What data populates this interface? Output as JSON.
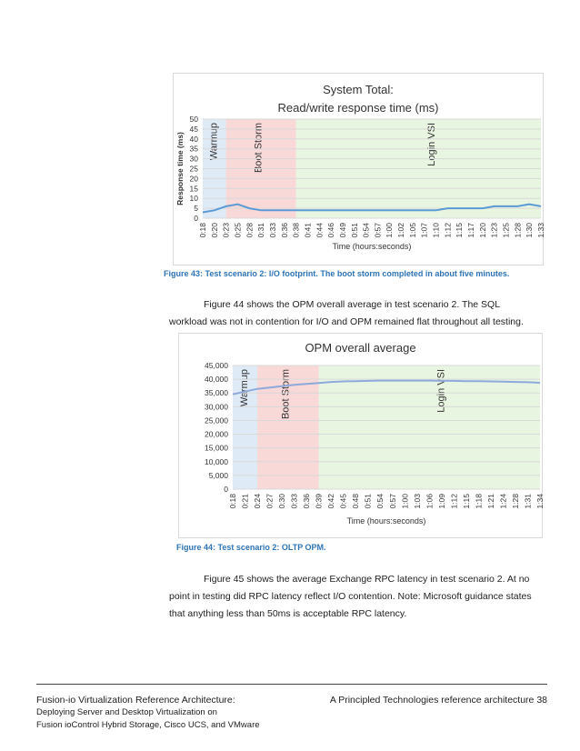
{
  "chart_data": [
    {
      "type": "line",
      "title": "System Total:",
      "subtitle": "Read/write response time (ms)",
      "x_label": "Time (hours:seconds)",
      "y_label": "Response time (ms)",
      "color": "#5b9bd5",
      "categories": [
        "0:18",
        "0:20",
        "0:23",
        "0:25",
        "0:28",
        "0:31",
        "0:33",
        "0:36",
        "0:38",
        "0:41",
        "0:44",
        "0:46",
        "0:49",
        "0:51",
        "0:54",
        "0:57",
        "1:00",
        "1:02",
        "1:05",
        "1:07",
        "1:10",
        "1:12",
        "1:15",
        "1:17",
        "1:20",
        "1:23",
        "1:25",
        "1:28",
        "1:30",
        "1:33"
      ],
      "values": [
        3,
        4,
        6,
        7,
        5,
        4,
        4,
        4,
        4,
        4,
        4,
        4,
        4,
        4,
        4,
        4,
        4,
        4,
        4,
        4,
        4,
        5,
        5,
        5,
        5,
        6,
        6,
        6,
        7,
        6
      ],
      "ylim": [
        0,
        50
      ],
      "yticks": [
        0,
        5,
        10,
        15,
        20,
        25,
        30,
        35,
        40,
        45,
        50
      ],
      "grid": true,
      "regions": [
        {
          "label": "Warmup",
          "start": "0:18",
          "end": "0:23",
          "color": "#c5d9f1"
        },
        {
          "label": "Boot Storm",
          "start": "0:23",
          "end": "0:38",
          "color": "#f4b8b8"
        },
        {
          "label": "Login VSI",
          "start": "0:38",
          "end": "1:33",
          "color": "#d6ecc8"
        }
      ]
    },
    {
      "type": "line",
      "title": "OPM overall average",
      "x_label": "Time (hours:seconds)",
      "color": "#8eaadb",
      "categories": [
        "0:18",
        "0:21",
        "0:24",
        "0:27",
        "0:30",
        "0:33",
        "0:36",
        "0:39",
        "0:42",
        "0:45",
        "0:48",
        "0:51",
        "0:54",
        "0:57",
        "1:00",
        "1:03",
        "1:06",
        "1:09",
        "1:12",
        "1:15",
        "1:18",
        "1:21",
        "1:24",
        "1:28",
        "1:31",
        "1:34"
      ],
      "values": [
        34500,
        35500,
        36500,
        37000,
        37500,
        38000,
        38300,
        38600,
        39000,
        39200,
        39300,
        39400,
        39500,
        39500,
        39500,
        39500,
        39500,
        39400,
        39400,
        39300,
        39300,
        39200,
        39100,
        39000,
        38900,
        38700
      ],
      "ylim": [
        0,
        45000
      ],
      "yticks": [
        0,
        {
          "value": 5000,
          "label": "5,000"
        },
        {
          "value": 10000,
          "label": "10,000"
        },
        {
          "value": 15000,
          "label": "15,000"
        },
        {
          "value": 20000,
          "label": "20,000"
        },
        {
          "value": 25000,
          "label": "25,000"
        },
        {
          "value": 30000,
          "label": "30,000"
        },
        {
          "value": 35000,
          "label": "35,000"
        },
        {
          "value": 40000,
          "label": "40,000"
        },
        {
          "value": 45000,
          "label": "45,000"
        }
      ],
      "grid": true,
      "regions": [
        {
          "label": "Warmup",
          "start": "0:18",
          "end": "0:24",
          "color": "#c5d9f1"
        },
        {
          "label": "Boot Storm",
          "start": "0:24",
          "end": "0:39",
          "color": "#f4b8b8"
        },
        {
          "label": "Login VSI",
          "start": "0:39",
          "end": "1:34",
          "color": "#d6ecc8"
        }
      ]
    }
  ],
  "captions": [
    "Figure 43: Test scenario 2: I/O footprint. The boot storm completed in about five minutes.",
    "Figure 44: Test scenario 2: OLTP OPM."
  ],
  "paragraphs": [
    "Figure 44 shows the OPM overall average in test scenario 2. The SQL workload was not in contention for I/O and OPM remained flat throughout all testing.",
    "Figure 45 shows the average Exchange RPC latency in test scenario 2. At no point in testing did RPC latency reflect I/O contention. Note: Microsoft guidance states that anything less than 50ms is acceptable RPC latency."
  ],
  "footer": {
    "left": [
      "Fusion-io Virtualization Reference Architecture:",
      "Deploying Server and Desktop Virtualization on",
      "Fusion ioControl Hybrid Storage, Cisco UCS, and VMware"
    ],
    "right": "A Principled Technologies reference architecture",
    "page": "38"
  }
}
